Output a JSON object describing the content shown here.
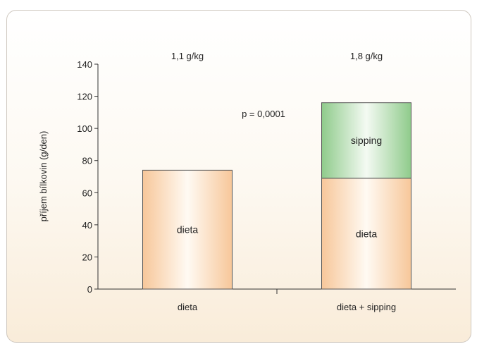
{
  "chart_data": {
    "type": "bar",
    "stacked": true,
    "title": "",
    "xlabel": "",
    "ylabel": "příjem bílkovin (g/den)",
    "ylim": [
      0,
      140
    ],
    "yticks": [
      0,
      20,
      40,
      60,
      80,
      100,
      120,
      140
    ],
    "grid": false,
    "categories": [
      "dieta",
      "dieta + sipping"
    ],
    "series": [
      {
        "name": "dieta",
        "values": [
          74,
          69
        ],
        "color": "#f7c79a"
      },
      {
        "name": "sipping",
        "values": [
          0,
          47
        ],
        "color": "#8fcb8b"
      }
    ],
    "top_annotations": [
      "1,1 g/kg",
      "1,8 g/kg"
    ],
    "p_value": "p = 0,0001"
  }
}
